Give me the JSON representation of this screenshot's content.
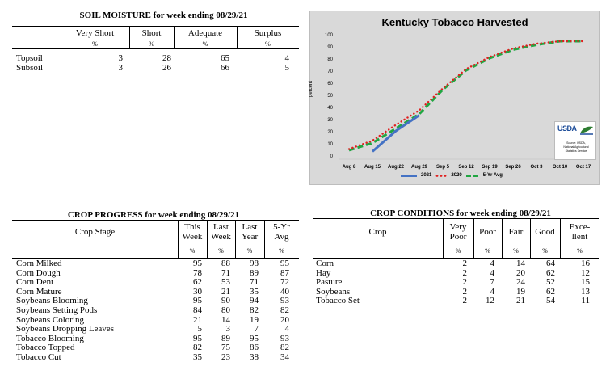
{
  "soil_moisture": {
    "title": "SOIL MOISTURE for week ending 08/29/21",
    "columns": [
      "Very Short",
      "Short",
      "Adequate",
      "Surplus"
    ],
    "unit": "%",
    "rows": [
      {
        "label": "Topsoil",
        "values": [
          "3",
          "28",
          "65",
          "4"
        ]
      },
      {
        "label": "Subsoil",
        "values": [
          "3",
          "26",
          "66",
          "5"
        ]
      }
    ]
  },
  "chart_data": {
    "type": "line",
    "title": "Kentucky Tobacco Harvested",
    "ylabel": "percent",
    "ylim": [
      0,
      100
    ],
    "yticks": [
      "0",
      "10",
      "20",
      "30",
      "40",
      "50",
      "60",
      "70",
      "80",
      "90",
      "100"
    ],
    "categories": [
      "Aug 8",
      "Aug 15",
      "Aug 22",
      "Aug 29",
      "Sep 5",
      "Sep 12",
      "Sep 19",
      "Sep 26",
      "Oct 3",
      "Oct 10",
      "Oct 17"
    ],
    "series": [
      {
        "name": "2021",
        "color": "#4472c4",
        "style": "solid",
        "values": [
          null,
          5,
          22,
          35,
          null,
          null,
          null,
          null,
          null,
          null,
          null
        ]
      },
      {
        "name": "2020",
        "color": "#e02020",
        "style": "dotted",
        "values": [
          7,
          14,
          27,
          39,
          57,
          73,
          83,
          90,
          94,
          96,
          96
        ]
      },
      {
        "name": "5-Yr Avg",
        "color": "#21a642",
        "style": "dashed",
        "values": [
          6,
          12,
          24,
          36,
          56,
          72,
          82,
          89,
          93,
          96,
          96
        ]
      }
    ],
    "grid": false,
    "legend_position": "bottom",
    "logo": {
      "name": "USDA",
      "lines": [
        "Source: USDA,",
        "National Agricultural",
        "Statistics Service"
      ]
    }
  },
  "crop_progress": {
    "title": "CROP PROGRESS for week ending 08/29/21",
    "stage_header": "Crop Stage",
    "columns": [
      {
        "top": "This",
        "bottom": "Week"
      },
      {
        "top": "Last",
        "bottom": "Week"
      },
      {
        "top": "Last",
        "bottom": "Year"
      },
      {
        "top": "5-Yr",
        "bottom": "Avg"
      }
    ],
    "unit": "%",
    "rows": [
      {
        "label": "Corn Milked",
        "values": [
          "95",
          "88",
          "98",
          "95"
        ]
      },
      {
        "label": "Corn Dough",
        "values": [
          "78",
          "71",
          "89",
          "87"
        ]
      },
      {
        "label": "Corn Dent",
        "values": [
          "62",
          "53",
          "71",
          "72"
        ]
      },
      {
        "label": "Corn Mature",
        "values": [
          "30",
          "21",
          "35",
          "40"
        ]
      },
      {
        "label": "Soybeans Blooming",
        "values": [
          "95",
          "90",
          "94",
          "93"
        ]
      },
      {
        "label": "Soybeans Setting Pods",
        "values": [
          "84",
          "80",
          "82",
          "82"
        ]
      },
      {
        "label": "Soybeans Coloring",
        "values": [
          "21",
          "14",
          "19",
          "20"
        ]
      },
      {
        "label": "Soybeans Dropping Leaves",
        "values": [
          "5",
          "3",
          "7",
          "4"
        ]
      },
      {
        "label": "Tobacco Blooming",
        "values": [
          "95",
          "89",
          "95",
          "93"
        ]
      },
      {
        "label": "Tobacco Topped",
        "values": [
          "82",
          "75",
          "86",
          "82"
        ]
      },
      {
        "label": "Tobacco Cut",
        "values": [
          "35",
          "23",
          "38",
          "34"
        ]
      }
    ]
  },
  "crop_conditions": {
    "title": "CROP CONDITIONS for week ending 08/29/21",
    "crop_header": "Crop",
    "columns": [
      {
        "top": "Very",
        "bottom": "Poor"
      },
      {
        "top": "Poor",
        "bottom": ""
      },
      {
        "top": "Fair",
        "bottom": ""
      },
      {
        "top": "Good",
        "bottom": ""
      },
      {
        "top": "Exce-",
        "bottom": "llent"
      }
    ],
    "unit": "%",
    "rows": [
      {
        "label": "Corn",
        "values": [
          "2",
          "4",
          "14",
          "64",
          "16"
        ]
      },
      {
        "label": "Hay",
        "values": [
          "2",
          "4",
          "20",
          "62",
          "12"
        ]
      },
      {
        "label": "Pasture",
        "values": [
          "2",
          "7",
          "24",
          "52",
          "15"
        ]
      },
      {
        "label": "Soybeans",
        "values": [
          "2",
          "4",
          "19",
          "62",
          "13"
        ]
      },
      {
        "label": "Tobacco Set",
        "values": [
          "2",
          "12",
          "21",
          "54",
          "11"
        ]
      }
    ]
  }
}
